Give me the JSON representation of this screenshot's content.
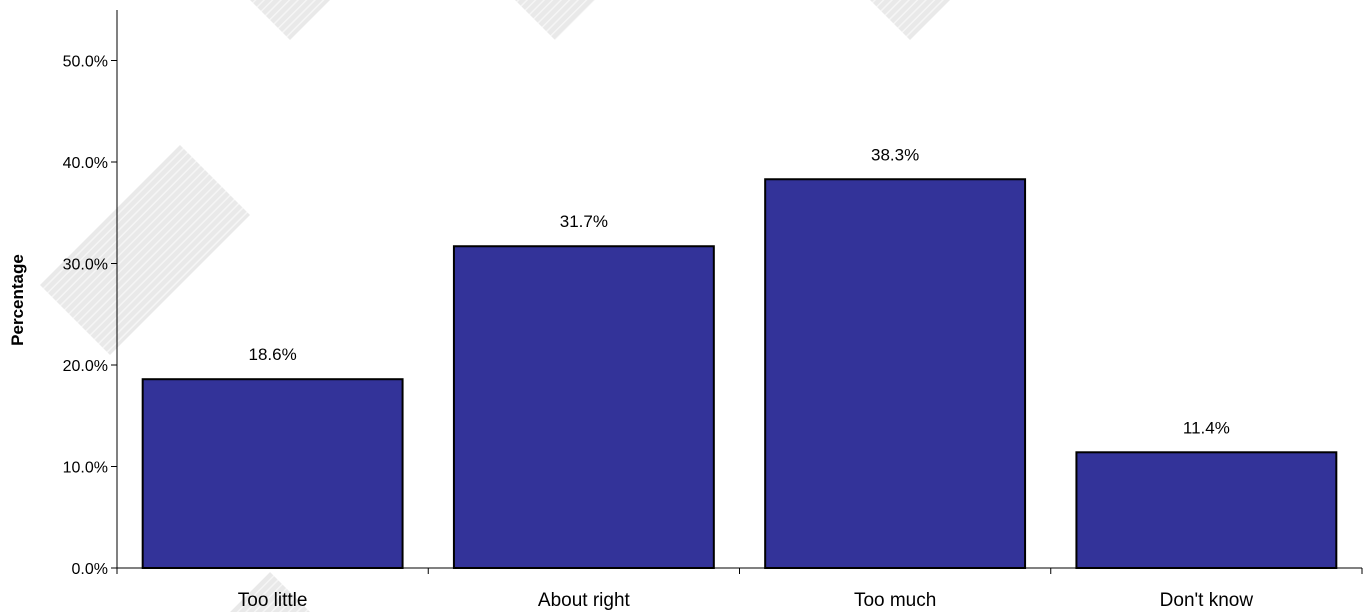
{
  "chart_data": {
    "type": "bar",
    "title": "",
    "xlabel": "",
    "ylabel": "Percentage",
    "categories": [
      "Too little",
      "About right",
      "Too much",
      "Don't know"
    ],
    "values": [
      18.6,
      31.7,
      38.3,
      11.4
    ],
    "data_labels": [
      "18.6%",
      "31.7%",
      "38.3%",
      "11.4%"
    ],
    "ylim": [
      0,
      55
    ],
    "yticks": [
      0,
      10,
      20,
      30,
      40,
      50
    ],
    "ytick_labels": [
      "0.0%",
      "10.0%",
      "20.0%",
      "30.0%",
      "40.0%",
      "50.0%"
    ],
    "grid": false,
    "legend": "none",
    "bar_color": "#333399",
    "bar_edge_color": "#000000",
    "watermark_color": "#d9d9d9"
  }
}
